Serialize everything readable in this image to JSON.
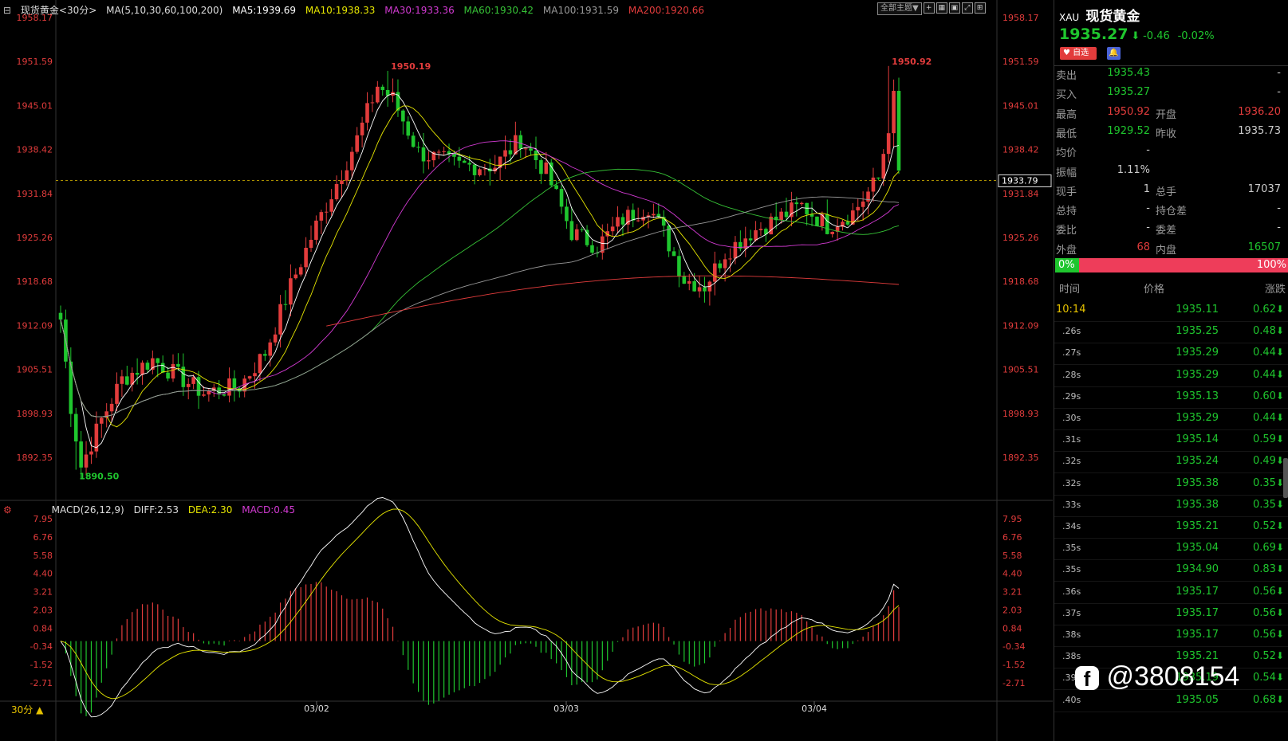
{
  "header": {
    "name_prefix": "现货黄金<30分>",
    "ma_params": "MA(5,10,30,60,100,200)",
    "ma5": "MA5:1939.69",
    "ma10": "MA10:1938.33",
    "ma30": "MA30:1933.36",
    "ma60": "MA60:1930.42",
    "ma100": "MA100:1931.59",
    "ma200": "MA200:1920.66"
  },
  "toolbar": {
    "theme_button": "全部主题▼"
  },
  "colors": {
    "up": "#e23c3c",
    "down": "#1fc62e",
    "ma5": "#ffffff",
    "ma10": "#e6e600",
    "ma30": "#d23ad2",
    "ma60": "#36c236",
    "ma100": "#999999",
    "ma200": "#e23c3c"
  },
  "price_axis_labels": [
    "1958.17",
    "1951.59",
    "1945.01",
    "1938.42",
    "1931.84",
    "1925.26",
    "1918.68",
    "1912.09",
    "1905.51",
    "1898.93",
    "1892.35"
  ],
  "current_price_tag": "1933.79",
  "high_marker_1": "1950.19",
  "high_marker_2": "1950.92",
  "low_marker": "1890.50",
  "macd": {
    "params": "MACD(26,12,9)",
    "diff": "DIFF:2.53",
    "dea": "DEA:2.30",
    "macd": "MACD:0.45",
    "axis_labels": [
      "7.95",
      "6.76",
      "5.58",
      "4.40",
      "3.21",
      "2.03",
      "0.84",
      "-0.34",
      "-1.52",
      "-2.71"
    ]
  },
  "x_axis": {
    "dates": [
      "03/02",
      "03/03",
      "03/04"
    ],
    "period_label": "30分 ▲"
  },
  "chart_data": {
    "type": "candlestick",
    "title": "现货黄金<30分>",
    "ylim": [
      1890.5,
      1958.17
    ],
    "last_price": 1935.27,
    "high": 1950.92,
    "low": 1890.5,
    "ma_values": {
      "MA5": 1939.69,
      "MA10": 1938.33,
      "MA30": 1933.36,
      "MA60": 1930.42,
      "MA100": 1931.59,
      "MA200": 1920.66
    },
    "macd_values": {
      "DIFF": 2.53,
      "DEA": 2.3,
      "MACD": 0.45
    },
    "x_labels": [
      "03/02",
      "03/03",
      "03/04"
    ]
  },
  "side": {
    "symbol": "XAU",
    "name": "现货黄金",
    "price": "1935.27",
    "arrow": "⬇",
    "change": "-0.46",
    "change_pct": "-0.02%",
    "fav_label": "自选",
    "quote_rows": [
      {
        "k": "卖出",
        "v1": "1935.43",
        "k2": "",
        "v2": "-"
      },
      {
        "k": "买入",
        "v1": "1935.27",
        "k2": "",
        "v2": "-"
      },
      {
        "k": "最高",
        "v1": "1950.92",
        "k2": "开盘",
        "v2": "1936.20"
      },
      {
        "k": "最低",
        "v1": "1929.52",
        "k2": "昨收",
        "v2": "1935.73"
      },
      {
        "k": "均价",
        "v1": "-",
        "k2": "",
        "v2": ""
      },
      {
        "k": "振幅",
        "v1": "1.11%",
        "k2": "",
        "v2": ""
      },
      {
        "k": "现手",
        "v1": "1",
        "k2": "总手",
        "v2": "17037"
      },
      {
        "k": "总持",
        "v1": "-",
        "k2": "持仓差",
        "v2": "-"
      },
      {
        "k": "委比",
        "v1": "-",
        "k2": "委差",
        "v2": "-"
      },
      {
        "k": "外盘",
        "v1": "68",
        "k2": "内盘",
        "v2": "16507"
      }
    ],
    "bar_left": "0%",
    "bar_right": "100%",
    "ticks_header": {
      "time": "时间",
      "price": "价格",
      "chg": "涨跌"
    },
    "ticks": [
      {
        "t": "10:14",
        "p": "1935.11",
        "c": "0.62"
      },
      {
        "t": ".26s",
        "p": "1935.25",
        "c": "0.48"
      },
      {
        "t": ".27s",
        "p": "1935.29",
        "c": "0.44"
      },
      {
        "t": ".28s",
        "p": "1935.29",
        "c": "0.44"
      },
      {
        "t": ".29s",
        "p": "1935.13",
        "c": "0.60"
      },
      {
        "t": ".30s",
        "p": "1935.29",
        "c": "0.44"
      },
      {
        "t": ".31s",
        "p": "1935.14",
        "c": "0.59"
      },
      {
        "t": ".32s",
        "p": "1935.24",
        "c": "0.49"
      },
      {
        "t": ".32s",
        "p": "1935.38",
        "c": "0.35"
      },
      {
        "t": ".33s",
        "p": "1935.38",
        "c": "0.35"
      },
      {
        "t": ".34s",
        "p": "1935.21",
        "c": "0.52"
      },
      {
        "t": ".35s",
        "p": "1935.04",
        "c": "0.69"
      },
      {
        "t": ".35s",
        "p": "1934.90",
        "c": "0.83"
      },
      {
        "t": ".36s",
        "p": "1935.17",
        "c": "0.56"
      },
      {
        "t": ".37s",
        "p": "1935.17",
        "c": "0.56"
      },
      {
        "t": ".38s",
        "p": "1935.17",
        "c": "0.56"
      },
      {
        "t": ".38s",
        "p": "1935.21",
        "c": "0.52"
      },
      {
        "t": ".39s",
        "p": "1935.19",
        "c": "0.54"
      },
      {
        "t": ".40s",
        "p": "1935.05",
        "c": "0.68"
      }
    ],
    "watermark": "@3808154"
  }
}
